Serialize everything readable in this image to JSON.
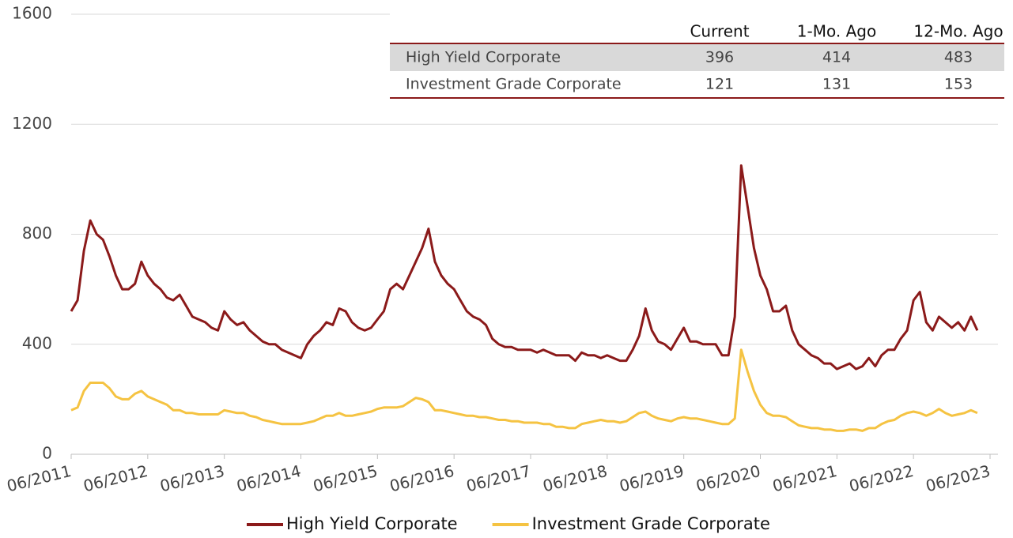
{
  "chart_data": {
    "type": "line",
    "x": [
      "06/2011",
      "07/2011",
      "08/2011",
      "09/2011",
      "10/2011",
      "11/2011",
      "12/2011",
      "01/2012",
      "02/2012",
      "03/2012",
      "04/2012",
      "05/2012",
      "06/2012",
      "07/2012",
      "08/2012",
      "09/2012",
      "10/2012",
      "11/2012",
      "12/2012",
      "01/2013",
      "02/2013",
      "03/2013",
      "04/2013",
      "05/2013",
      "06/2013",
      "07/2013",
      "08/2013",
      "09/2013",
      "10/2013",
      "11/2013",
      "12/2013",
      "01/2014",
      "02/2014",
      "03/2014",
      "04/2014",
      "05/2014",
      "06/2014",
      "07/2014",
      "08/2014",
      "09/2014",
      "10/2014",
      "11/2014",
      "12/2014",
      "01/2015",
      "02/2015",
      "03/2015",
      "04/2015",
      "05/2015",
      "06/2015",
      "07/2015",
      "08/2015",
      "09/2015",
      "10/2015",
      "11/2015",
      "12/2015",
      "01/2016",
      "02/2016",
      "03/2016",
      "04/2016",
      "05/2016",
      "06/2016",
      "07/2016",
      "08/2016",
      "09/2016",
      "10/2016",
      "11/2016",
      "12/2016",
      "01/2017",
      "02/2017",
      "03/2017",
      "04/2017",
      "05/2017",
      "06/2017",
      "07/2017",
      "08/2017",
      "09/2017",
      "10/2017",
      "11/2017",
      "12/2017",
      "01/2018",
      "02/2018",
      "03/2018",
      "04/2018",
      "05/2018",
      "06/2018",
      "07/2018",
      "08/2018",
      "09/2018",
      "10/2018",
      "11/2018",
      "12/2018",
      "01/2019",
      "02/2019",
      "03/2019",
      "04/2019",
      "05/2019",
      "06/2019",
      "07/2019",
      "08/2019",
      "09/2019",
      "10/2019",
      "11/2019",
      "12/2019",
      "01/2020",
      "02/2020",
      "03/2020",
      "04/2020",
      "05/2020",
      "06/2020",
      "07/2020",
      "08/2020",
      "09/2020",
      "10/2020",
      "11/2020",
      "12/2020",
      "01/2021",
      "02/2021",
      "03/2021",
      "04/2021",
      "05/2021",
      "06/2021",
      "07/2021",
      "08/2021",
      "09/2021",
      "10/2021",
      "11/2021",
      "12/2021",
      "01/2022",
      "02/2022",
      "03/2022",
      "04/2022",
      "05/2022",
      "06/2022",
      "07/2022",
      "08/2022",
      "09/2022",
      "10/2022",
      "11/2022",
      "12/2022",
      "01/2023",
      "02/2023",
      "03/2023",
      "04/2023"
    ],
    "series": [
      {
        "name": "High Yield Corporate",
        "color": "#8b1a1a",
        "values": [
          520,
          560,
          740,
          850,
          800,
          780,
          720,
          650,
          600,
          600,
          620,
          700,
          650,
          620,
          600,
          570,
          560,
          580,
          540,
          500,
          490,
          480,
          460,
          450,
          520,
          490,
          470,
          480,
          450,
          430,
          410,
          400,
          400,
          380,
          370,
          360,
          350,
          400,
          430,
          450,
          480,
          470,
          530,
          520,
          480,
          460,
          450,
          460,
          490,
          520,
          600,
          620,
          600,
          650,
          700,
          750,
          820,
          700,
          650,
          620,
          600,
          560,
          520,
          500,
          490,
          470,
          420,
          400,
          390,
          390,
          380,
          380,
          380,
          370,
          380,
          370,
          360,
          360,
          360,
          340,
          370,
          360,
          360,
          350,
          360,
          350,
          340,
          340,
          380,
          430,
          530,
          450,
          410,
          400,
          380,
          420,
          460,
          410,
          410,
          400,
          400,
          400,
          360,
          360,
          500,
          1050,
          900,
          750,
          650,
          600,
          520,
          520,
          540,
          450,
          400,
          380,
          360,
          350,
          330,
          330,
          310,
          320,
          330,
          310,
          320,
          350,
          320,
          360,
          380,
          380,
          420,
          450,
          560,
          590,
          480,
          450,
          500,
          480,
          460,
          480,
          450,
          500,
          450
        ]
      },
      {
        "name": "Investment Grade Corporate",
        "color": "#f5c342",
        "values": [
          160,
          170,
          230,
          260,
          260,
          260,
          240,
          210,
          200,
          200,
          220,
          230,
          210,
          200,
          190,
          180,
          160,
          160,
          150,
          150,
          145,
          145,
          145,
          145,
          160,
          155,
          150,
          150,
          140,
          135,
          125,
          120,
          115,
          110,
          110,
          110,
          110,
          115,
          120,
          130,
          140,
          140,
          150,
          140,
          140,
          145,
          150,
          155,
          165,
          170,
          170,
          170,
          175,
          190,
          205,
          200,
          190,
          160,
          160,
          155,
          150,
          145,
          140,
          140,
          135,
          135,
          130,
          125,
          125,
          120,
          120,
          115,
          115,
          115,
          110,
          110,
          100,
          100,
          95,
          95,
          110,
          115,
          120,
          125,
          120,
          120,
          115,
          120,
          135,
          150,
          155,
          140,
          130,
          125,
          120,
          130,
          135,
          130,
          130,
          125,
          120,
          115,
          110,
          110,
          130,
          380,
          300,
          230,
          180,
          150,
          140,
          140,
          135,
          120,
          105,
          100,
          95,
          95,
          90,
          90,
          85,
          85,
          90,
          90,
          85,
          95,
          95,
          110,
          120,
          125,
          140,
          150,
          155,
          150,
          140,
          150,
          165,
          150,
          140,
          145,
          150,
          160,
          150
        ]
      }
    ],
    "xlim": [
      "06/2011",
      "06/2023"
    ],
    "xticks": [
      "06/2011",
      "06/2012",
      "06/2013",
      "06/2014",
      "06/2015",
      "06/2016",
      "06/2017",
      "06/2018",
      "06/2019",
      "06/2020",
      "06/2021",
      "06/2022",
      "06/2023"
    ],
    "ylim": [
      0,
      1600
    ],
    "yticks": [
      0,
      400,
      800,
      1200,
      1600
    ],
    "grid": true,
    "table": {
      "columns": [
        "Current",
        "1-Mo. Ago",
        "12-Mo. Ago"
      ],
      "rows": [
        {
          "label": "High Yield Corporate",
          "values": [
            396,
            414,
            483
          ]
        },
        {
          "label": "Investment Grade Corporate",
          "values": [
            121,
            131,
            153
          ]
        }
      ]
    }
  }
}
